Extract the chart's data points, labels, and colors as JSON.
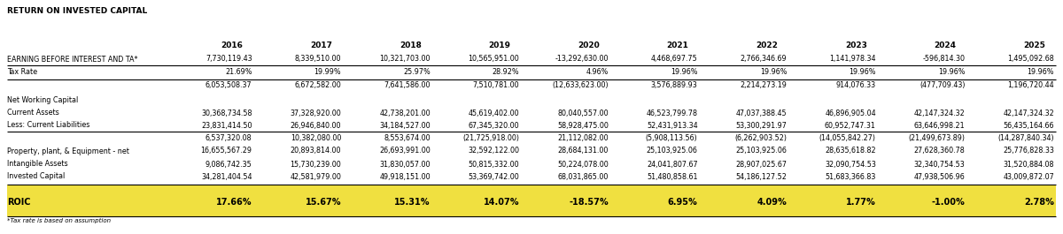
{
  "title": "RETURN ON INVESTED CAPITAL",
  "years": [
    "2016",
    "2017",
    "2018",
    "2019",
    "2020",
    "2021",
    "2022",
    "2023",
    "2024",
    "2025"
  ],
  "rows": {
    "EBIT": [
      "7,730,119.43",
      "8,339,510.00",
      "10,321,703.00",
      "10,565,951.00",
      "-13,292,630.00",
      "4,468,697.75",
      "2,766,346.69",
      "1,141,978.34",
      "-596,814.30",
      "1,495,092.68"
    ],
    "TaxRate": [
      "21.69%",
      "19.99%",
      "25.97%",
      "28.92%",
      "4.96%",
      "19.96%",
      "19.96%",
      "19.96%",
      "19.96%",
      "19.96%"
    ],
    "NOPAT": [
      "6,053,508.37",
      "6,672,582.00",
      "7,641,586.00",
      "7,510,781.00",
      "(12,633,623.00)",
      "3,576,889.93",
      "2,214,273.19",
      "914,076.33",
      "(477,709.43)",
      "1,196,720.44"
    ],
    "CurrentAssets": [
      "30,368,734.58",
      "37,328,920.00",
      "42,738,201.00",
      "45,619,402.00",
      "80,040,557.00",
      "46,523,799.78",
      "47,037,388.45",
      "46,896,905.04",
      "42,147,324.32",
      "42,147,324.32"
    ],
    "CurrentLiabilities": [
      "23,831,414.50",
      "26,946,840.00",
      "34,184,527.00",
      "67,345,320.00",
      "58,928,475.00",
      "52,431,913.34",
      "53,300,291.97",
      "60,952,747.31",
      "63,646,998.21",
      "56,435,164.66"
    ],
    "NWC": [
      "6,537,320.08",
      "10,382,080.00",
      "8,553,674.00",
      "(21,725,918.00)",
      "21,112,082.00",
      "(5,908,113.56)",
      "(6,262,903.52)",
      "(14,055,842.27)",
      "(21,499,673.89)",
      "(14,287,840.34)"
    ],
    "PPE": [
      "16,655,567.29",
      "20,893,814.00",
      "26,693,991.00",
      "32,592,122.00",
      "28,684,131.00",
      "25,103,925.06",
      "25,103,925.06",
      "28,635,618.82",
      "27,628,360.78",
      "25,776,828.33"
    ],
    "IntangibleAssets": [
      "9,086,742.35",
      "15,730,239.00",
      "31,830,057.00",
      "50,815,332.00",
      "50,224,078.00",
      "24,041,807.67",
      "28,907,025.67",
      "32,090,754.53",
      "32,340,754.53",
      "31,520,884.08"
    ],
    "InvestedCapital": [
      "34,281,404.54",
      "42,581,979.00",
      "49,918,151.00",
      "53,369,742.00",
      "68,031,865.00",
      "51,480,858.61",
      "54,186,127.52",
      "51,683,366.83",
      "47,938,506.96",
      "43,009,872.07"
    ],
    "ROIC": [
      "17.66%",
      "15.67%",
      "15.31%",
      "14.07%",
      "-18.57%",
      "6.95%",
      "4.09%",
      "1.77%",
      "-1.00%",
      "2.78%"
    ]
  },
  "footnote": "*Tax rate is based on assumption",
  "roic_bg_color": "#f0e040",
  "bg_color": "#ffffff",
  "title_fontsize": 6.5,
  "header_fontsize": 6.5,
  "data_fontsize": 5.8,
  "roic_fontsize": 7.0
}
